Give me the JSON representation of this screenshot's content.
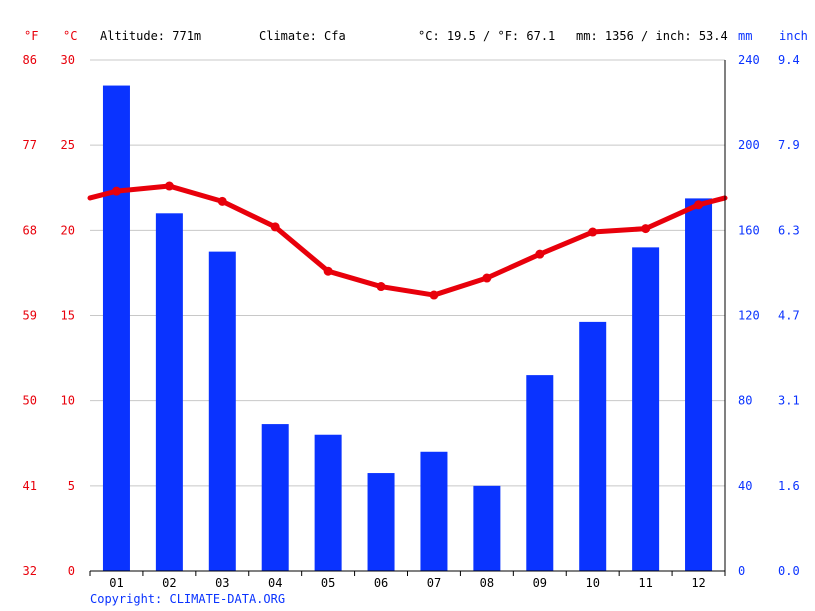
{
  "header": {
    "unit_f": "°F",
    "unit_c": "°C",
    "altitude": "Altitude: 771m",
    "climate": "Climate: Cfa",
    "temp_avg": "°C: 19.5 / °F: 67.1",
    "precip_total": "mm: 1356 / inch: 53.4",
    "unit_mm": "mm",
    "unit_inch": "inch"
  },
  "footer": {
    "copyright": "Copyright: CLIMATE-DATA.ORG"
  },
  "colors": {
    "temperature": "#e8000b",
    "precipitation": "#0a33ff",
    "grid": "#c8c8c8"
  },
  "chart_data": {
    "type": "bar",
    "title": "",
    "categories": [
      "01",
      "02",
      "03",
      "04",
      "05",
      "06",
      "07",
      "08",
      "09",
      "10",
      "11",
      "12"
    ],
    "series": [
      {
        "name": "",
        "kind": "bar",
        "axis": "right",
        "unit": "mm",
        "values": [
          228,
          168,
          150,
          69,
          64,
          46,
          56,
          40,
          92,
          117,
          152,
          175
        ]
      },
      {
        "name": "",
        "kind": "line",
        "axis": "left",
        "unit": "°C",
        "values": [
          22.3,
          22.6,
          21.7,
          20.2,
          17.6,
          16.7,
          16.2,
          17.2,
          18.6,
          19.9,
          20.1,
          21.5
        ]
      }
    ],
    "left_axis_c": {
      "range": [
        0,
        30
      ],
      "ticks": [
        "0",
        "5",
        "10",
        "15",
        "20",
        "25",
        "30"
      ]
    },
    "left_axis_f": {
      "ticks": [
        "32",
        "41",
        "50",
        "59",
        "68",
        "77",
        "86"
      ]
    },
    "right_axis_mm": {
      "range": [
        0,
        240
      ],
      "ticks": [
        "0",
        "40",
        "80",
        "120",
        "160",
        "200",
        "240"
      ]
    },
    "right_axis_inch": {
      "ticks": [
        "0.0",
        "1.6",
        "3.1",
        "4.7",
        "6.3",
        "7.9",
        "9.4"
      ]
    },
    "grid": true,
    "legend": "none"
  }
}
